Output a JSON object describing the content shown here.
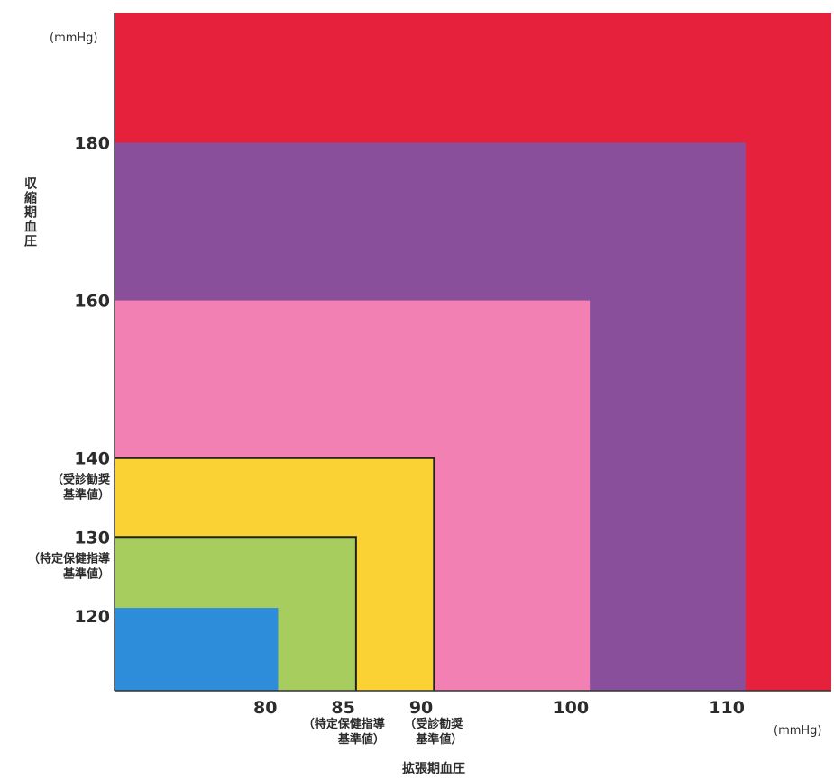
{
  "chart_data": {
    "type": "area",
    "y_unit": "(mmHg)",
    "x_unit": "(mmHg)",
    "ylabel": "収縮期血圧",
    "xlabel": "拡張期血圧",
    "x_ticks": [
      {
        "value": 80,
        "label": "80",
        "note": []
      },
      {
        "value": 85,
        "label": "85",
        "note": [
          "（特定保健指導",
          "基準値）"
        ]
      },
      {
        "value": 90,
        "label": "90",
        "note": [
          "（受診勧奨",
          "基準値）"
        ]
      },
      {
        "value": 100,
        "label": "100",
        "note": []
      },
      {
        "value": 110,
        "label": "110",
        "note": []
      }
    ],
    "y_ticks": [
      {
        "value": 120,
        "label": "120",
        "note": []
      },
      {
        "value": 130,
        "label": "130",
        "note": [
          "（特定保健指導",
          "基準値）"
        ]
      },
      {
        "value": 140,
        "label": "140",
        "note": [
          "（受診勧奨",
          "基準値）"
        ]
      },
      {
        "value": 160,
        "label": "160",
        "note": []
      },
      {
        "value": 180,
        "label": "180",
        "note": []
      }
    ],
    "xlim": [
      69.5,
      115.5
    ],
    "ylim": [
      110.5,
      196.5
    ],
    "regions": [
      {
        "x_max": 115.5,
        "y_max": 196.5,
        "color": "#e5213b",
        "outlined": false
      },
      {
        "x_max": 110,
        "y_max": 180,
        "color": "#8a4f9b",
        "outlined": false
      },
      {
        "x_max": 100,
        "y_max": 160,
        "color": "#f380b2",
        "outlined": false
      },
      {
        "x_max": 90,
        "y_max": 140,
        "color": "#fbd234",
        "outlined": true
      },
      {
        "x_max": 85,
        "y_max": 130,
        "color": "#a6cd5e",
        "outlined": true
      },
      {
        "x_max": 80,
        "y_max": 121,
        "color": "#2d8ddb",
        "outlined": false
      }
    ]
  }
}
